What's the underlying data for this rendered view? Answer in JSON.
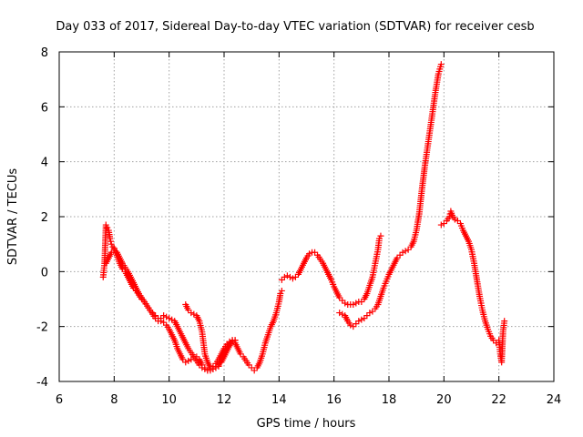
{
  "chart_data": {
    "type": "scatter",
    "title": "Day 033 of 2017, Sidereal Day-to-day VTEC variation (SDTVAR) for receiver cesb",
    "xlabel": "GPS time / hours",
    "ylabel": "SDTVAR / TECUs",
    "xlim": [
      6,
      24
    ],
    "ylim": [
      -4,
      8
    ],
    "x_ticks": [
      "6",
      "8",
      "10",
      "12",
      "14",
      "16",
      "18",
      "20",
      "22",
      "24"
    ],
    "y_ticks": [
      "-4",
      "-2",
      "0",
      "2",
      "4",
      "6",
      "8"
    ],
    "grid": true,
    "marker": "plus",
    "color": "#ff0000",
    "series": [
      {
        "points": [
          [
            7.6,
            -0.2
          ],
          [
            7.65,
            0.3
          ],
          [
            7.7,
            1.7
          ],
          [
            7.75,
            1.6
          ],
          [
            7.8,
            1.5
          ],
          [
            7.85,
            1.2
          ],
          [
            7.9,
            1.0
          ],
          [
            7.95,
            0.9
          ],
          [
            8.0,
            0.85
          ],
          [
            8.05,
            0.75
          ],
          [
            8.1,
            0.6
          ],
          [
            8.2,
            0.3
          ],
          [
            8.3,
            0.1
          ],
          [
            8.4,
            0.0
          ],
          [
            8.5,
            -0.2
          ],
          [
            8.6,
            -0.4
          ],
          [
            8.7,
            -0.6
          ],
          [
            8.8,
            -0.7
          ],
          [
            8.9,
            -0.85
          ],
          [
            9.0,
            -1.0
          ],
          [
            9.1,
            -1.1
          ],
          [
            9.2,
            -1.25
          ],
          [
            9.3,
            -1.4
          ],
          [
            9.4,
            -1.5
          ],
          [
            9.5,
            -1.6
          ],
          [
            9.6,
            -1.7
          ],
          [
            9.7,
            -1.8
          ],
          [
            9.8,
            -1.85
          ],
          [
            9.9,
            -1.95
          ],
          [
            10.0,
            -2.1
          ],
          [
            10.1,
            -2.3
          ],
          [
            10.2,
            -2.5
          ],
          [
            10.3,
            -2.8
          ],
          [
            10.4,
            -3.0
          ],
          [
            10.5,
            -3.2
          ],
          [
            10.6,
            -3.3
          ],
          [
            10.7,
            -3.25
          ],
          [
            10.8,
            -3.2
          ],
          [
            10.9,
            -3.1
          ],
          [
            11.0,
            -3.1
          ],
          [
            11.1,
            -3.2
          ],
          [
            11.2,
            -3.4
          ],
          [
            11.3,
            -3.5
          ],
          [
            11.4,
            -3.6
          ],
          [
            11.5,
            -3.55
          ],
          [
            11.6,
            -3.45
          ],
          [
            11.7,
            -3.35
          ],
          [
            11.8,
            -3.2
          ],
          [
            11.9,
            -3.0
          ],
          [
            12.0,
            -2.8
          ],
          [
            12.1,
            -2.65
          ],
          [
            12.2,
            -2.55
          ],
          [
            12.3,
            -2.5
          ],
          [
            12.4,
            -2.5
          ]
        ]
      },
      {
        "points": [
          [
            7.7,
            0.3
          ],
          [
            7.8,
            0.5
          ],
          [
            7.9,
            0.7
          ],
          [
            8.0,
            0.8
          ],
          [
            8.1,
            0.7
          ],
          [
            8.2,
            0.5
          ],
          [
            8.3,
            0.3
          ],
          [
            8.5,
            0.0
          ],
          [
            8.7,
            -0.4
          ],
          [
            8.9,
            -0.8
          ],
          [
            9.1,
            -1.1
          ],
          [
            9.3,
            -1.4
          ],
          [
            9.5,
            -1.7
          ],
          [
            9.6,
            -1.8
          ],
          [
            9.7,
            -1.7
          ],
          [
            9.8,
            -1.6
          ],
          [
            9.9,
            -1.65
          ],
          [
            10.0,
            -1.7
          ],
          [
            10.1,
            -1.75
          ],
          [
            10.2,
            -1.8
          ],
          [
            10.3,
            -2.0
          ],
          [
            10.4,
            -2.2
          ],
          [
            10.5,
            -2.4
          ],
          [
            10.6,
            -2.6
          ],
          [
            10.7,
            -2.8
          ],
          [
            10.8,
            -2.95
          ],
          [
            10.9,
            -3.1
          ],
          [
            11.0,
            -3.25
          ],
          [
            11.1,
            -3.4
          ],
          [
            11.2,
            -3.5
          ],
          [
            11.3,
            -3.55
          ],
          [
            11.4,
            -3.6
          ],
          [
            11.5,
            -3.6
          ],
          [
            11.6,
            -3.55
          ],
          [
            11.7,
            -3.5
          ],
          [
            11.8,
            -3.45
          ]
        ]
      },
      {
        "points": [
          [
            10.6,
            -1.2
          ],
          [
            10.7,
            -1.4
          ],
          [
            10.8,
            -1.5
          ],
          [
            10.9,
            -1.55
          ],
          [
            11.0,
            -1.6
          ],
          [
            11.1,
            -1.8
          ],
          [
            11.2,
            -2.2
          ],
          [
            11.25,
            -2.6
          ],
          [
            11.3,
            -3.0
          ],
          [
            11.4,
            -3.3
          ],
          [
            11.5,
            -3.5
          ],
          [
            11.6,
            -3.55
          ],
          [
            11.7,
            -3.5
          ],
          [
            11.8,
            -3.4
          ],
          [
            11.9,
            -3.3
          ],
          [
            12.0,
            -3.1
          ],
          [
            12.1,
            -2.9
          ],
          [
            12.2,
            -2.7
          ],
          [
            12.3,
            -2.55
          ],
          [
            12.4,
            -2.5
          ]
        ]
      },
      {
        "points": [
          [
            11.8,
            -3.4
          ],
          [
            11.9,
            -3.2
          ],
          [
            12.0,
            -3.0
          ],
          [
            12.1,
            -2.8
          ],
          [
            12.2,
            -2.6
          ],
          [
            12.3,
            -2.5
          ],
          [
            12.4,
            -2.6
          ],
          [
            12.5,
            -2.8
          ],
          [
            12.6,
            -3.0
          ],
          [
            12.7,
            -3.1
          ],
          [
            12.8,
            -3.25
          ],
          [
            12.9,
            -3.4
          ],
          [
            13.0,
            -3.5
          ],
          [
            13.1,
            -3.6
          ],
          [
            13.2,
            -3.5
          ],
          [
            13.3,
            -3.3
          ],
          [
            13.4,
            -3.0
          ],
          [
            13.5,
            -2.6
          ],
          [
            13.6,
            -2.3
          ],
          [
            13.7,
            -2.0
          ],
          [
            13.8,
            -1.8
          ],
          [
            13.9,
            -1.5
          ],
          [
            14.0,
            -1.1
          ],
          [
            14.05,
            -0.8
          ],
          [
            14.1,
            -0.7
          ]
        ]
      },
      {
        "points": [
          [
            14.1,
            -0.3
          ],
          [
            14.2,
            -0.2
          ],
          [
            14.3,
            -0.15
          ],
          [
            14.4,
            -0.2
          ],
          [
            14.5,
            -0.25
          ],
          [
            14.6,
            -0.2
          ],
          [
            14.7,
            -0.1
          ],
          [
            14.8,
            0.1
          ],
          [
            14.9,
            0.3
          ],
          [
            15.0,
            0.5
          ],
          [
            15.1,
            0.65
          ],
          [
            15.2,
            0.7
          ],
          [
            15.3,
            0.7
          ],
          [
            15.4,
            0.6
          ],
          [
            15.5,
            0.45
          ],
          [
            15.6,
            0.3
          ],
          [
            15.7,
            0.1
          ],
          [
            15.8,
            -0.1
          ],
          [
            15.9,
            -0.3
          ],
          [
            16.0,
            -0.55
          ],
          [
            16.1,
            -0.75
          ],
          [
            16.2,
            -0.95
          ],
          [
            16.3,
            -1.05
          ],
          [
            16.4,
            -1.15
          ],
          [
            16.5,
            -1.2
          ],
          [
            16.6,
            -1.2
          ],
          [
            16.7,
            -1.2
          ],
          [
            16.8,
            -1.15
          ],
          [
            16.9,
            -1.1
          ],
          [
            17.0,
            -1.1
          ],
          [
            17.1,
            -1.0
          ],
          [
            17.2,
            -0.8
          ],
          [
            17.3,
            -0.5
          ],
          [
            17.4,
            -0.2
          ],
          [
            17.5,
            0.3
          ],
          [
            17.6,
            0.8
          ],
          [
            17.65,
            1.2
          ],
          [
            17.7,
            1.3
          ]
        ]
      },
      {
        "points": [
          [
            16.2,
            -1.5
          ],
          [
            16.3,
            -1.55
          ],
          [
            16.4,
            -1.6
          ],
          [
            16.5,
            -1.8
          ],
          [
            16.6,
            -1.95
          ],
          [
            16.7,
            -2.0
          ],
          [
            16.8,
            -1.9
          ],
          [
            16.9,
            -1.8
          ],
          [
            17.0,
            -1.75
          ],
          [
            17.1,
            -1.7
          ],
          [
            17.2,
            -1.6
          ],
          [
            17.3,
            -1.5
          ],
          [
            17.4,
            -1.45
          ],
          [
            17.5,
            -1.35
          ],
          [
            17.6,
            -1.2
          ],
          [
            17.7,
            -0.9
          ],
          [
            17.8,
            -0.6
          ],
          [
            17.9,
            -0.35
          ],
          [
            18.0,
            -0.1
          ],
          [
            18.1,
            0.1
          ],
          [
            18.2,
            0.3
          ],
          [
            18.3,
            0.5
          ],
          [
            18.4,
            0.6
          ],
          [
            18.5,
            0.7
          ],
          [
            18.6,
            0.75
          ],
          [
            18.7,
            0.8
          ],
          [
            18.8,
            0.9
          ],
          [
            18.9,
            1.1
          ],
          [
            19.0,
            1.5
          ],
          [
            19.1,
            2.1
          ],
          [
            19.2,
            3.0
          ],
          [
            19.3,
            3.8
          ],
          [
            19.4,
            4.5
          ],
          [
            19.5,
            5.2
          ],
          [
            19.6,
            5.9
          ],
          [
            19.7,
            6.6
          ],
          [
            19.8,
            7.2
          ],
          [
            19.9,
            7.55
          ]
        ]
      },
      {
        "points": [
          [
            19.9,
            1.7
          ],
          [
            20.0,
            1.75
          ],
          [
            20.1,
            1.85
          ],
          [
            20.2,
            2.0
          ],
          [
            20.25,
            2.2
          ],
          [
            20.3,
            2.05
          ],
          [
            20.4,
            1.9
          ],
          [
            20.5,
            1.85
          ],
          [
            20.6,
            1.75
          ],
          [
            20.7,
            1.5
          ],
          [
            20.8,
            1.3
          ],
          [
            20.9,
            1.1
          ],
          [
            21.0,
            0.8
          ],
          [
            21.1,
            0.3
          ],
          [
            21.2,
            -0.3
          ],
          [
            21.3,
            -0.9
          ],
          [
            21.4,
            -1.4
          ],
          [
            21.5,
            -1.8
          ],
          [
            21.6,
            -2.1
          ],
          [
            21.7,
            -2.35
          ],
          [
            21.8,
            -2.5
          ],
          [
            21.9,
            -2.6
          ],
          [
            22.0,
            -2.5
          ],
          [
            22.05,
            -3.0
          ],
          [
            22.1,
            -3.3
          ],
          [
            22.15,
            -2.2
          ],
          [
            22.2,
            -1.8
          ]
        ]
      }
    ]
  }
}
